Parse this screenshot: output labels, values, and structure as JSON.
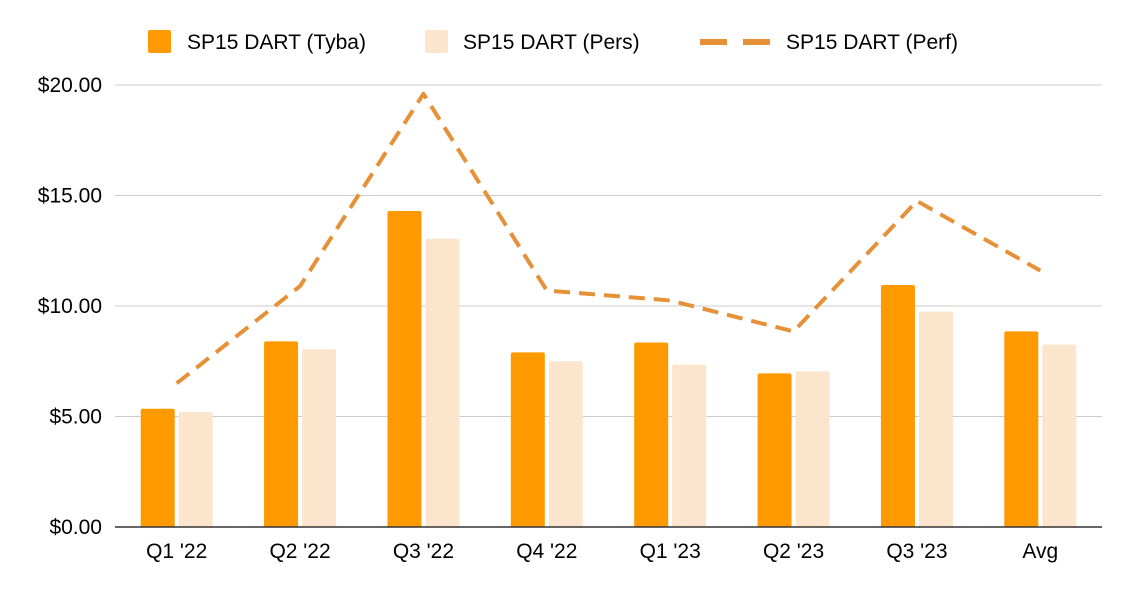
{
  "chart_data": {
    "type": "bar",
    "categories": [
      "Q1 '22",
      "Q2 '22",
      "Q3 '22",
      "Q4 '22",
      "Q1 '23",
      "Q2 '23",
      "Q3 '23",
      "Avg"
    ],
    "series": [
      {
        "name": "SP15 DART (Tyba)",
        "kind": "bar",
        "color": "#ff9900",
        "values": [
          5.35,
          8.4,
          14.3,
          7.9,
          8.35,
          6.95,
          10.95,
          8.85
        ]
      },
      {
        "name": "SP15 DART (Pers)",
        "kind": "bar",
        "color": "#fce5cd",
        "values": [
          5.2,
          8.05,
          13.05,
          7.5,
          7.35,
          7.05,
          9.75,
          8.25
        ]
      },
      {
        "name": "SP15 DART (Perf)",
        "kind": "line-dashed",
        "color": "#e69138",
        "values": [
          6.5,
          10.9,
          19.6,
          10.7,
          10.25,
          8.85,
          14.75,
          11.6
        ]
      }
    ],
    "ylim": [
      0,
      20
    ],
    "yticks": [
      "$0.00",
      "$5.00",
      "$10.00",
      "$15.00",
      "$20.00"
    ],
    "ytick_values": [
      0,
      5,
      10,
      15,
      20
    ],
    "grid": true,
    "legend_position": "top"
  }
}
